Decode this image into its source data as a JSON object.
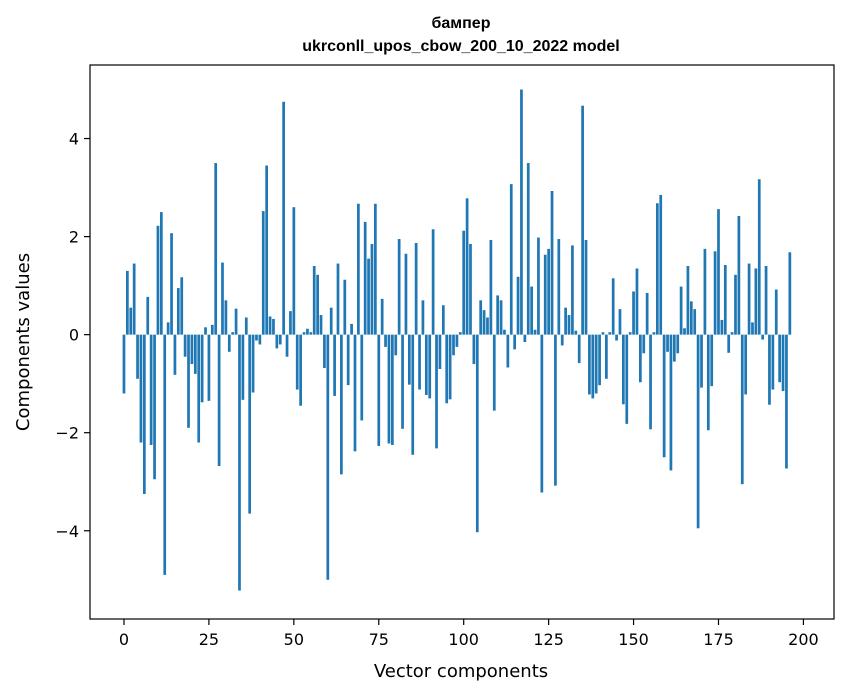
{
  "chart_data": {
    "type": "bar",
    "title": "бампер",
    "subtitle": "ukrconll_upos_cbow_200_10_2022 model",
    "xlabel": "Vector components",
    "ylabel": "Components values",
    "xlim": [
      -10,
      209
    ],
    "ylim": [
      -5.8,
      5.5
    ],
    "xticks": [
      0,
      25,
      50,
      75,
      100,
      125,
      150,
      175,
      200
    ],
    "xtick_labels": [
      "0",
      "25",
      "50",
      "75",
      "100",
      "125",
      "150",
      "175",
      "200"
    ],
    "yticks": [
      -4,
      -2,
      0,
      2,
      4
    ],
    "ytick_labels": [
      "−4",
      "−2",
      "0",
      "2",
      "4"
    ],
    "grid": false,
    "bar_color": "#1f77b4",
    "values": [
      -1.2,
      1.3,
      0.55,
      1.45,
      -0.9,
      -2.2,
      -3.25,
      0.77,
      -2.25,
      -2.95,
      2.22,
      2.5,
      -4.9,
      0.25,
      2.07,
      -0.82,
      0.95,
      1.17,
      -0.45,
      -1.9,
      -0.6,
      -0.8,
      -2.2,
      -1.38,
      0.15,
      -1.35,
      0.2,
      3.5,
      -2.68,
      1.47,
      0.7,
      -0.35,
      0.05,
      0.53,
      -5.22,
      -1.33,
      0.35,
      -3.65,
      -1.18,
      -0.12,
      -0.2,
      2.52,
      3.45,
      0.37,
      0.32,
      -0.28,
      -0.2,
      4.75,
      -0.45,
      0.48,
      2.6,
      -1.12,
      -1.45,
      0.05,
      0.12,
      0.05,
      1.4,
      1.22,
      0.4,
      -0.68,
      -5.0,
      0.55,
      -1.25,
      1.45,
      -2.85,
      1.12,
      -1.03,
      0.22,
      -2.38,
      2.67,
      -1.75,
      2.3,
      1.55,
      1.85,
      2.67,
      -2.27,
      0.73,
      -0.25,
      -2.22,
      -2.25,
      -0.42,
      1.95,
      -1.92,
      1.65,
      -1.02,
      -2.45,
      1.87,
      -1.12,
      0.7,
      -1.23,
      -1.3,
      2.15,
      -2.32,
      -0.7,
      0.6,
      -1.4,
      -1.32,
      -0.42,
      -0.25,
      0.05,
      2.12,
      2.78,
      1.85,
      -0.6,
      -4.03,
      0.7,
      0.5,
      0.35,
      1.93,
      -1.55,
      0.8,
      0.7,
      0.1,
      -0.67,
      3.07,
      -0.3,
      1.18,
      5.0,
      -0.15,
      3.5,
      0.98,
      0.1,
      1.98,
      -3.22,
      1.63,
      1.75,
      2.93,
      -3.08,
      1.95,
      -0.22,
      0.55,
      0.4,
      1.82,
      0.08,
      -0.58,
      4.67,
      1.93,
      -1.22,
      -1.3,
      -1.2,
      -1.03,
      0.05,
      -0.9,
      0.05,
      1.15,
      -0.12,
      0.52,
      -1.42,
      -1.82,
      0.05,
      0.88,
      1.35,
      -0.97,
      -0.38,
      0.85,
      -1.93,
      0.05,
      2.68,
      2.85,
      -2.5,
      -0.35,
      -2.77,
      -0.55,
      -0.38,
      0.98,
      0.13,
      1.4,
      0.68,
      0.52,
      -3.95,
      -1.08,
      1.75,
      -1.95,
      -1.05,
      1.7,
      2.56,
      0.3,
      1.42,
      -0.37,
      0.05,
      1.22,
      2.42,
      -3.05,
      -1.22,
      1.45,
      0.25,
      1.35,
      3.17,
      -0.1,
      1.4,
      -1.43,
      -1.12,
      0.92,
      -0.97,
      -1.15,
      -2.73,
      1.68
    ]
  }
}
